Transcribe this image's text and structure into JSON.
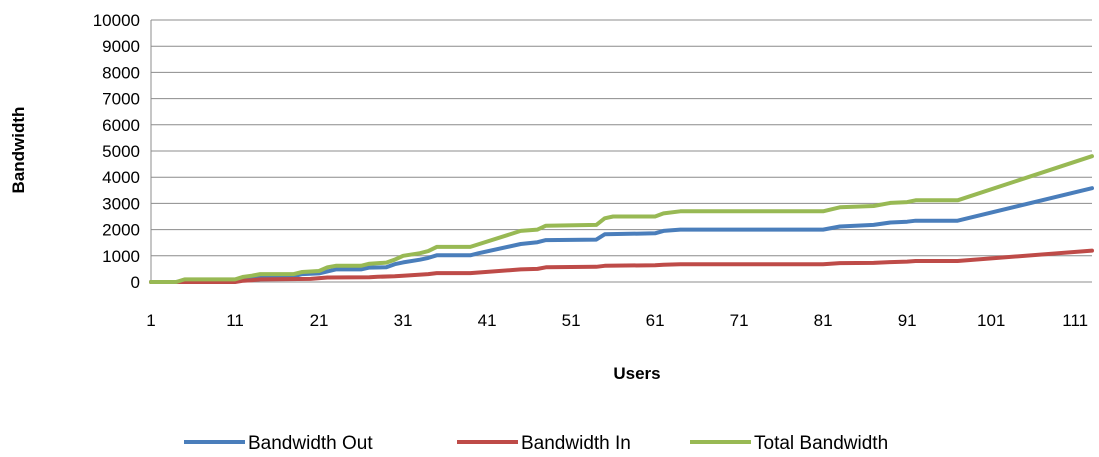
{
  "chart_data": {
    "type": "line",
    "xlabel": "Users",
    "ylabel": "Bandwidth",
    "ylim": [
      0,
      10000
    ],
    "y_ticks": [
      0,
      1000,
      2000,
      3000,
      4000,
      5000,
      6000,
      7000,
      8000,
      9000,
      10000
    ],
    "x_range": [
      1,
      113
    ],
    "x_ticks": [
      1,
      11,
      21,
      31,
      41,
      51,
      61,
      71,
      81,
      91,
      101,
      111
    ],
    "grid": "horizontal",
    "legend_position": "bottom",
    "series": [
      {
        "name": "Bandwidth Out",
        "color": "#4a7ebb",
        "points": [
          [
            1,
            0
          ],
          [
            4,
            0
          ],
          [
            5,
            50
          ],
          [
            11,
            50
          ],
          [
            12,
            150
          ],
          [
            13,
            180
          ],
          [
            14,
            220
          ],
          [
            18,
            220
          ],
          [
            19,
            300
          ],
          [
            21,
            330
          ],
          [
            23,
            480
          ],
          [
            26,
            480
          ],
          [
            27,
            550
          ],
          [
            29,
            560
          ],
          [
            30,
            680
          ],
          [
            31,
            750
          ],
          [
            33,
            850
          ],
          [
            34,
            920
          ],
          [
            35,
            1020
          ],
          [
            39,
            1020
          ],
          [
            40,
            1100
          ],
          [
            45,
            1450
          ],
          [
            47,
            1520
          ],
          [
            48,
            1600
          ],
          [
            54,
            1620
          ],
          [
            55,
            1820
          ],
          [
            61,
            1860
          ],
          [
            62,
            1950
          ],
          [
            64,
            2000
          ],
          [
            81,
            2000
          ],
          [
            83,
            2120
          ],
          [
            87,
            2180
          ],
          [
            89,
            2270
          ],
          [
            91,
            2300
          ],
          [
            92,
            2340
          ],
          [
            97,
            2340
          ],
          [
            113,
            3580
          ]
        ]
      },
      {
        "name": "Bandwidth In",
        "color": "#be4b48",
        "points": [
          [
            1,
            0
          ],
          [
            11,
            0
          ],
          [
            12,
            50
          ],
          [
            13,
            70
          ],
          [
            14,
            100
          ],
          [
            20,
            120
          ],
          [
            22,
            170
          ],
          [
            27,
            180
          ],
          [
            28,
            200
          ],
          [
            30,
            220
          ],
          [
            31,
            240
          ],
          [
            34,
            300
          ],
          [
            35,
            340
          ],
          [
            39,
            340
          ],
          [
            45,
            480
          ],
          [
            47,
            500
          ],
          [
            48,
            560
          ],
          [
            54,
            580
          ],
          [
            55,
            620
          ],
          [
            61,
            640
          ],
          [
            62,
            660
          ],
          [
            64,
            680
          ],
          [
            81,
            680
          ],
          [
            83,
            720
          ],
          [
            87,
            730
          ],
          [
            89,
            760
          ],
          [
            91,
            780
          ],
          [
            92,
            800
          ],
          [
            97,
            800
          ],
          [
            113,
            1200
          ]
        ]
      },
      {
        "name": "Total Bandwidth",
        "color": "#98b954",
        "points": [
          [
            1,
            0
          ],
          [
            4,
            0
          ],
          [
            5,
            100
          ],
          [
            11,
            100
          ],
          [
            12,
            200
          ],
          [
            13,
            240
          ],
          [
            14,
            300
          ],
          [
            18,
            300
          ],
          [
            19,
            380
          ],
          [
            21,
            420
          ],
          [
            22,
            560
          ],
          [
            23,
            620
          ],
          [
            26,
            620
          ],
          [
            27,
            700
          ],
          [
            29,
            740
          ],
          [
            30,
            850
          ],
          [
            31,
            1000
          ],
          [
            33,
            1100
          ],
          [
            34,
            1180
          ],
          [
            35,
            1340
          ],
          [
            39,
            1340
          ],
          [
            45,
            1950
          ],
          [
            47,
            2000
          ],
          [
            48,
            2150
          ],
          [
            54,
            2180
          ],
          [
            55,
            2430
          ],
          [
            56,
            2500
          ],
          [
            61,
            2500
          ],
          [
            62,
            2620
          ],
          [
            64,
            2700
          ],
          [
            81,
            2700
          ],
          [
            83,
            2850
          ],
          [
            87,
            2900
          ],
          [
            89,
            3020
          ],
          [
            91,
            3050
          ],
          [
            92,
            3120
          ],
          [
            97,
            3120
          ],
          [
            113,
            4800
          ]
        ]
      }
    ]
  }
}
